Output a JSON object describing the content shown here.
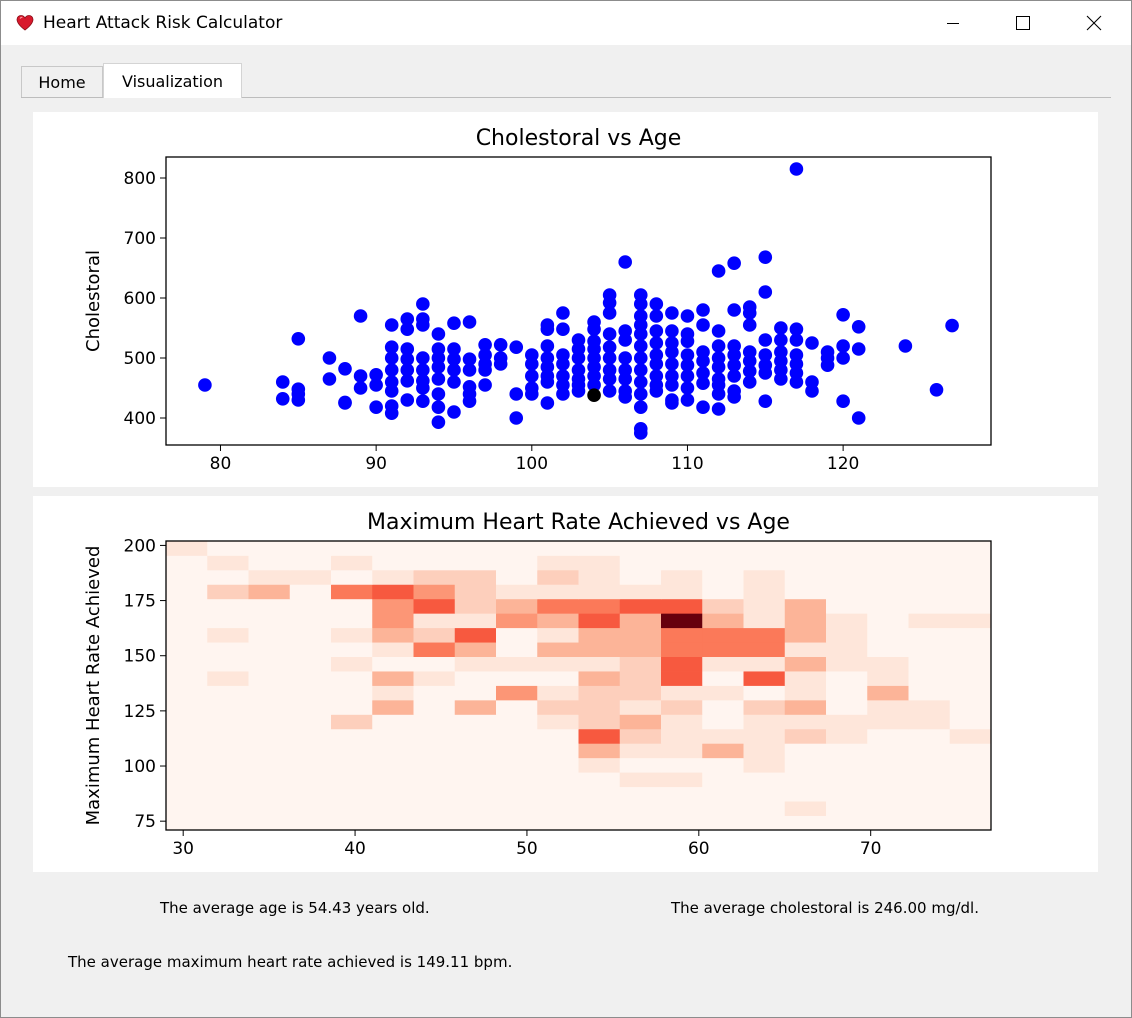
{
  "window": {
    "title": "Heart Attack Risk Calculator",
    "icon": "heart-icon",
    "controls": [
      "minimize-icon",
      "maximize-icon",
      "close-icon"
    ]
  },
  "tabs": [
    {
      "label": "Home",
      "active": false
    },
    {
      "label": "Visualization",
      "active": true
    }
  ],
  "stats": {
    "avg_age": "The average age is 54.43 years old.",
    "avg_chol": "The average cholestoral is 246.00 mg/dl.",
    "avg_hr": "The average maximum heart rate achieved is 149.11 bpm."
  },
  "chart_data": [
    {
      "type": "scatter",
      "title": "Cholestoral vs Age",
      "xlabel": "",
      "ylabel": "Cholestoral",
      "xlim": [
        76.5,
        129.5
      ],
      "ylim": [
        355,
        835
      ],
      "xticks": [
        80,
        90,
        100,
        110,
        120
      ],
      "yticks": [
        400,
        500,
        600,
        700,
        800
      ],
      "color": "#0000ff",
      "highlight_color": "#000000",
      "highlight": [
        104,
        438
      ],
      "points": [
        [
          79,
          455
        ],
        [
          84,
          460
        ],
        [
          84,
          432
        ],
        [
          85,
          448
        ],
        [
          85,
          440
        ],
        [
          85,
          430
        ],
        [
          85,
          532
        ],
        [
          87,
          500
        ],
        [
          87,
          465
        ],
        [
          88,
          482
        ],
        [
          88,
          425
        ],
        [
          88,
          426
        ],
        [
          89,
          570
        ],
        [
          89,
          470
        ],
        [
          89,
          450
        ],
        [
          90,
          472
        ],
        [
          90,
          455
        ],
        [
          90,
          418
        ],
        [
          91,
          555
        ],
        [
          91,
          518
        ],
        [
          91,
          500
        ],
        [
          91,
          480
        ],
        [
          91,
          460
        ],
        [
          91,
          445
        ],
        [
          91,
          420
        ],
        [
          91,
          408
        ],
        [
          92,
          565
        ],
        [
          92,
          548
        ],
        [
          92,
          515
        ],
        [
          92,
          498
        ],
        [
          92,
          480
        ],
        [
          92,
          462
        ],
        [
          92,
          430
        ],
        [
          93,
          590
        ],
        [
          93,
          565
        ],
        [
          93,
          555
        ],
        [
          93,
          500
        ],
        [
          93,
          480
        ],
        [
          93,
          462
        ],
        [
          93,
          450
        ],
        [
          93,
          428
        ],
        [
          94,
          540
        ],
        [
          94,
          515
        ],
        [
          94,
          500
        ],
        [
          94,
          485
        ],
        [
          94,
          465
        ],
        [
          94,
          440
        ],
        [
          94,
          418
        ],
        [
          94,
          393
        ],
        [
          95,
          558
        ],
        [
          95,
          515
        ],
        [
          95,
          498
        ],
        [
          95,
          480
        ],
        [
          95,
          460
        ],
        [
          95,
          410
        ],
        [
          96,
          560
        ],
        [
          96,
          498
        ],
        [
          96,
          480
        ],
        [
          96,
          452
        ],
        [
          96,
          440
        ],
        [
          96,
          428
        ],
        [
          97,
          522
        ],
        [
          97,
          505
        ],
        [
          97,
          490
        ],
        [
          97,
          480
        ],
        [
          97,
          455
        ],
        [
          98,
          522
        ],
        [
          98,
          500
        ],
        [
          98,
          490
        ],
        [
          99,
          518
        ],
        [
          99,
          440
        ],
        [
          99,
          400
        ],
        [
          100,
          505
        ],
        [
          100,
          490
        ],
        [
          100,
          470
        ],
        [
          100,
          450
        ],
        [
          100,
          440
        ],
        [
          101,
          555
        ],
        [
          101,
          548
        ],
        [
          101,
          520
        ],
        [
          101,
          500
        ],
        [
          101,
          485
        ],
        [
          101,
          470
        ],
        [
          101,
          460
        ],
        [
          101,
          425
        ],
        [
          102,
          575
        ],
        [
          102,
          548
        ],
        [
          102,
          505
        ],
        [
          102,
          490
        ],
        [
          102,
          470
        ],
        [
          102,
          455
        ],
        [
          102,
          440
        ],
        [
          103,
          530
        ],
        [
          103,
          515
        ],
        [
          103,
          500
        ],
        [
          103,
          480
        ],
        [
          103,
          465
        ],
        [
          103,
          455
        ],
        [
          103,
          445
        ],
        [
          104,
          560
        ],
        [
          104,
          548
        ],
        [
          104,
          528
        ],
        [
          104,
          515
        ],
        [
          104,
          500
        ],
        [
          104,
          485
        ],
        [
          104,
          470
        ],
        [
          104,
          455
        ],
        [
          105,
          605
        ],
        [
          105,
          592
        ],
        [
          105,
          575
        ],
        [
          105,
          540
        ],
        [
          105,
          518
        ],
        [
          105,
          500
        ],
        [
          105,
          480
        ],
        [
          105,
          465
        ],
        [
          105,
          445
        ],
        [
          106,
          660
        ],
        [
          106,
          545
        ],
        [
          106,
          530
        ],
        [
          106,
          500
        ],
        [
          106,
          480
        ],
        [
          106,
          465
        ],
        [
          106,
          445
        ],
        [
          106,
          435
        ],
        [
          107,
          605
        ],
        [
          107,
          590
        ],
        [
          107,
          570
        ],
        [
          107,
          555
        ],
        [
          107,
          540
        ],
        [
          107,
          520
        ],
        [
          107,
          500
        ],
        [
          107,
          480
        ],
        [
          107,
          460
        ],
        [
          107,
          440
        ],
        [
          107,
          418
        ],
        [
          107,
          382
        ],
        [
          107,
          375
        ],
        [
          108,
          590
        ],
        [
          108,
          570
        ],
        [
          108,
          545
        ],
        [
          108,
          525
        ],
        [
          108,
          505
        ],
        [
          108,
          490
        ],
        [
          108,
          470
        ],
        [
          108,
          455
        ],
        [
          108,
          445
        ],
        [
          109,
          575
        ],
        [
          109,
          545
        ],
        [
          109,
          525
        ],
        [
          109,
          510
        ],
        [
          109,
          490
        ],
        [
          109,
          470
        ],
        [
          109,
          455
        ],
        [
          109,
          430
        ],
        [
          109,
          425
        ],
        [
          110,
          570
        ],
        [
          110,
          540
        ],
        [
          110,
          528
        ],
        [
          110,
          505
        ],
        [
          110,
          488
        ],
        [
          110,
          470
        ],
        [
          110,
          450
        ],
        [
          110,
          430
        ],
        [
          111,
          580
        ],
        [
          111,
          555
        ],
        [
          111,
          510
        ],
        [
          111,
          495
        ],
        [
          111,
          475
        ],
        [
          111,
          458
        ],
        [
          111,
          418
        ],
        [
          112,
          645
        ],
        [
          112,
          545
        ],
        [
          112,
          520
        ],
        [
          112,
          500
        ],
        [
          112,
          485
        ],
        [
          112,
          465
        ],
        [
          112,
          455
        ],
        [
          112,
          440
        ],
        [
          112,
          415
        ],
        [
          113,
          658
        ],
        [
          113,
          580
        ],
        [
          113,
          520
        ],
        [
          113,
          505
        ],
        [
          113,
          488
        ],
        [
          113,
          470
        ],
        [
          113,
          445
        ],
        [
          113,
          435
        ],
        [
          114,
          585
        ],
        [
          114,
          575
        ],
        [
          114,
          555
        ],
        [
          114,
          510
        ],
        [
          114,
          495
        ],
        [
          114,
          478
        ],
        [
          114,
          460
        ],
        [
          115,
          668
        ],
        [
          115,
          610
        ],
        [
          115,
          530
        ],
        [
          115,
          505
        ],
        [
          115,
          488
        ],
        [
          115,
          475
        ],
        [
          115,
          428
        ],
        [
          116,
          550
        ],
        [
          116,
          530
        ],
        [
          116,
          510
        ],
        [
          116,
          495
        ],
        [
          116,
          480
        ],
        [
          116,
          465
        ],
        [
          117,
          815
        ],
        [
          117,
          548
        ],
        [
          117,
          530
        ],
        [
          117,
          505
        ],
        [
          117,
          490
        ],
        [
          117,
          475
        ],
        [
          117,
          460
        ],
        [
          118,
          525
        ],
        [
          118,
          460
        ],
        [
          118,
          445
        ],
        [
          119,
          510
        ],
        [
          119,
          500
        ],
        [
          119,
          488
        ],
        [
          120,
          572
        ],
        [
          120,
          520
        ],
        [
          120,
          500
        ],
        [
          120,
          428
        ],
        [
          121,
          552
        ],
        [
          121,
          515
        ],
        [
          121,
          400
        ],
        [
          124,
          520
        ],
        [
          126,
          447
        ],
        [
          127,
          554
        ]
      ]
    },
    {
      "type": "heatmap",
      "title": "Maximum Heart Rate Achieved vs Age",
      "xlabel": "",
      "ylabel": "Maximum Heart Rate Achieved",
      "colormap": "Reds",
      "xlim": [
        29,
        77
      ],
      "ylim": [
        71,
        202
      ],
      "xticks": [
        30,
        40,
        50,
        60,
        70
      ],
      "yticks": [
        75,
        100,
        125,
        150,
        175,
        200
      ],
      "x_edges": [
        29.0,
        31.4,
        33.8,
        36.2,
        38.6,
        41.0,
        43.4,
        45.8,
        48.2,
        50.6,
        53.0,
        55.4,
        57.8,
        60.2,
        62.6,
        65.0,
        67.4,
        69.8,
        72.2,
        74.6,
        77.0
      ],
      "y_edges": [
        71.0,
        77.55,
        84.1,
        90.65,
        97.2,
        103.75,
        110.3,
        116.85,
        123.4,
        129.95,
        136.5,
        143.05,
        149.6,
        156.15,
        162.7,
        169.25,
        175.8,
        182.35,
        188.9,
        195.45,
        202.0
      ],
      "counts": [
        [
          0,
          0,
          0,
          0,
          0,
          0,
          0,
          0,
          0,
          0,
          0,
          0,
          0,
          0,
          0,
          0,
          0,
          0,
          0,
          0
        ],
        [
          0,
          0,
          0,
          0,
          0,
          0,
          0,
          0,
          0,
          0,
          0,
          0,
          0,
          0,
          0,
          1,
          0,
          0,
          0,
          0
        ],
        [
          0,
          0,
          0,
          0,
          0,
          0,
          0,
          0,
          0,
          0,
          0,
          0,
          0,
          0,
          0,
          0,
          0,
          0,
          0,
          0
        ],
        [
          0,
          0,
          0,
          0,
          0,
          0,
          0,
          0,
          0,
          0,
          0,
          1,
          1,
          0,
          0,
          0,
          0,
          0,
          0,
          0
        ],
        [
          0,
          0,
          0,
          0,
          0,
          0,
          0,
          0,
          0,
          0,
          1,
          0,
          0,
          0,
          1,
          0,
          0,
          0,
          0,
          0
        ],
        [
          0,
          0,
          0,
          0,
          0,
          0,
          0,
          0,
          0,
          0,
          3,
          1,
          1,
          3,
          1,
          0,
          0,
          0,
          0,
          0
        ],
        [
          0,
          0,
          0,
          0,
          0,
          0,
          0,
          0,
          0,
          0,
          6,
          2,
          1,
          1,
          1,
          2,
          1,
          0,
          0,
          1
        ],
        [
          0,
          0,
          0,
          0,
          2,
          0,
          0,
          0,
          0,
          1,
          2,
          3,
          1,
          0,
          1,
          1,
          1,
          1,
          1,
          0
        ],
        [
          0,
          0,
          0,
          0,
          0,
          3,
          0,
          3,
          0,
          2,
          2,
          1,
          2,
          0,
          2,
          3,
          0,
          1,
          1,
          0
        ],
        [
          0,
          0,
          0,
          0,
          0,
          1,
          0,
          0,
          4,
          1,
          2,
          2,
          1,
          1,
          0,
          1,
          0,
          3,
          0,
          0
        ],
        [
          0,
          1,
          0,
          0,
          0,
          3,
          1,
          0,
          0,
          0,
          3,
          2,
          6,
          0,
          6,
          1,
          0,
          1,
          0,
          0
        ],
        [
          0,
          0,
          0,
          0,
          1,
          0,
          0,
          1,
          1,
          1,
          1,
          2,
          6,
          1,
          1,
          3,
          1,
          1,
          0,
          0
        ],
        [
          0,
          0,
          0,
          0,
          0,
          1,
          5,
          3,
          0,
          3,
          3,
          3,
          5,
          5,
          5,
          1,
          1,
          0,
          0,
          0
        ],
        [
          0,
          1,
          0,
          0,
          1,
          3,
          2,
          6,
          0,
          1,
          3,
          3,
          5,
          5,
          5,
          3,
          1,
          0,
          0,
          0
        ],
        [
          0,
          0,
          0,
          0,
          0,
          4,
          1,
          1,
          4,
          3,
          6,
          3,
          11,
          3,
          1,
          3,
          1,
          0,
          1,
          1
        ],
        [
          0,
          0,
          0,
          0,
          0,
          4,
          6,
          2,
          3,
          5,
          5,
          6,
          6,
          2,
          1,
          3,
          0,
          0,
          0,
          0
        ],
        [
          0,
          2,
          3,
          0,
          5,
          6,
          4,
          2,
          1,
          1,
          1,
          1,
          1,
          0,
          1,
          0,
          0,
          0,
          0,
          0
        ],
        [
          0,
          0,
          1,
          1,
          0,
          1,
          2,
          2,
          0,
          2,
          1,
          0,
          1,
          0,
          1,
          0,
          0,
          0,
          0,
          0
        ],
        [
          0,
          1,
          0,
          0,
          1,
          0,
          0,
          0,
          0,
          1,
          1,
          0,
          0,
          0,
          0,
          0,
          0,
          0,
          0,
          0
        ],
        [
          1,
          0,
          0,
          0,
          0,
          0,
          0,
          0,
          0,
          0,
          0,
          0,
          0,
          0,
          0,
          0,
          0,
          0,
          0,
          0
        ]
      ]
    }
  ]
}
